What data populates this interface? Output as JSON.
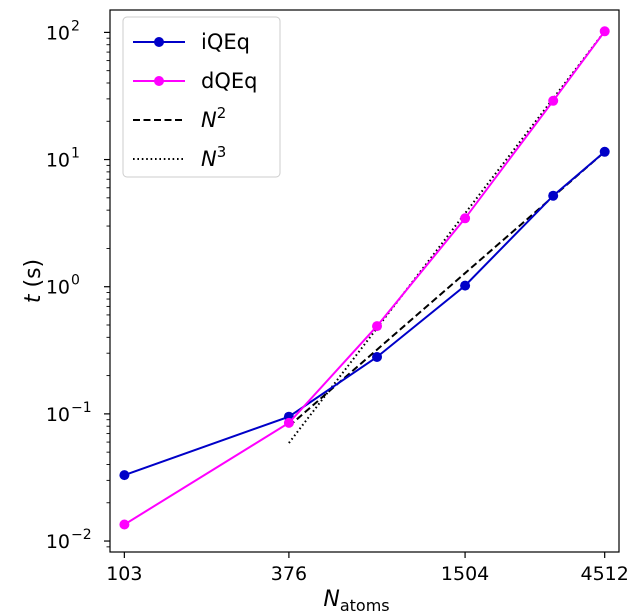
{
  "chart_data": {
    "type": "line",
    "xscale": "log",
    "yscale": "log",
    "xlabel": "N",
    "xlabel_sub": "atoms",
    "ylabel": "t (s)",
    "xticks": [
      103,
      376,
      1504,
      4512
    ],
    "xtick_labels": [
      "103",
      "376",
      "1504",
      "4512"
    ],
    "yticks": [
      {
        "value": 0.01,
        "base": "10",
        "exp": "−2"
      },
      {
        "value": 0.1,
        "base": "10",
        "exp": "−1"
      },
      {
        "value": 1,
        "base": "10",
        "exp": "0"
      },
      {
        "value": 10,
        "base": "10",
        "exp": "1"
      },
      {
        "value": 100,
        "base": "10",
        "exp": "2"
      }
    ],
    "ylim": [
      0.0082,
      150
    ],
    "xlim": [
      92,
      5050
    ],
    "grid": false,
    "legend_position": "top-left",
    "x": [
      103,
      376,
      752,
      1504,
      3008,
      4512
    ],
    "series": [
      {
        "name": "iQEq",
        "color": "#0000c8",
        "marker": "circle",
        "linestyle": "solid",
        "values": [
          0.033,
          0.095,
          0.28,
          1.02,
          5.2,
          11.5
        ]
      },
      {
        "name": "dQEq",
        "color": "#ff00ff",
        "marker": "circle",
        "linestyle": "solid",
        "values": [
          0.0135,
          0.085,
          0.49,
          3.45,
          29,
          102
        ]
      }
    ],
    "reference_lines": [
      {
        "name": "N",
        "exp": "2",
        "linestyle": "dashed",
        "color": "#000000",
        "x": [
          376,
          4512
        ],
        "values": [
          0.08,
          11.5
        ]
      },
      {
        "name": "N",
        "exp": "3",
        "linestyle": "dotted",
        "color": "#000000",
        "x": [
          376,
          4512
        ],
        "values": [
          0.059,
          102
        ]
      }
    ]
  }
}
